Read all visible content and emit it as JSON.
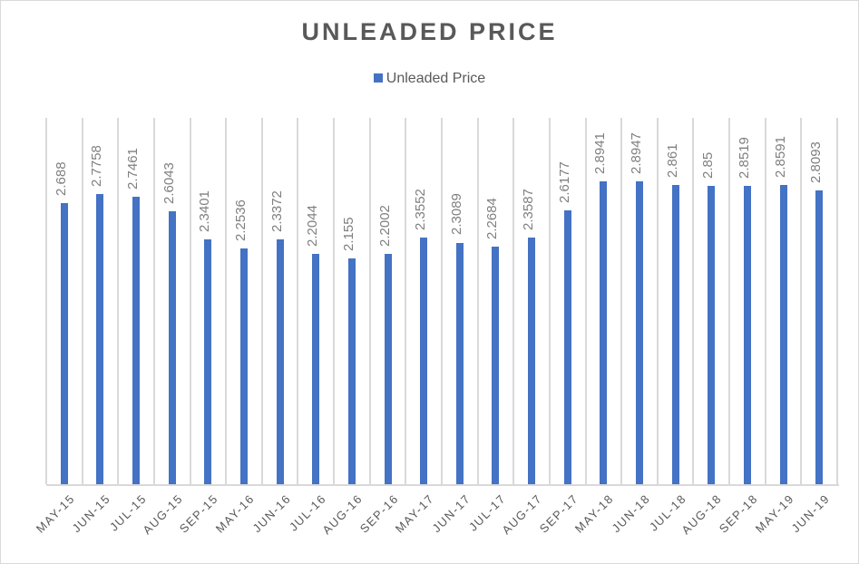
{
  "chart_data": {
    "type": "bar",
    "title": "UNLEADED PRICE",
    "xlabel": "",
    "ylabel": "",
    "ylim": [
      0,
      3.5
    ],
    "grid": "vertical category gridlines",
    "legend_position": "top",
    "categories": [
      "MAY-15",
      "JUN-15",
      "JUL-15",
      "AUG-15",
      "SEP-15",
      "MAY-16",
      "JUN-16",
      "JUL-16",
      "AUG-16",
      "SEP-16",
      "MAY-17",
      "JUN-17",
      "JUL-17",
      "AUG-17",
      "SEP-17",
      "MAY-18",
      "JUN-18",
      "JUL-18",
      "AUG-18",
      "SEP-18",
      "MAY-19",
      "JUN-19"
    ],
    "series": [
      {
        "name": "Unleaded Price",
        "color": "#4472c4",
        "values": [
          2.688,
          2.7758,
          2.7461,
          2.6043,
          2.3401,
          2.2536,
          2.3372,
          2.2044,
          2.155,
          2.2002,
          2.3552,
          2.3089,
          2.2684,
          2.3587,
          2.6177,
          2.8941,
          2.8947,
          2.861,
          2.85,
          2.8519,
          2.8591,
          2.8093
        ],
        "labels": [
          "2.688",
          "2.7758",
          "2.7461",
          "2.6043",
          "2.3401",
          "2.2536",
          "2.3372",
          "2.2044",
          "2.155",
          "2.2002",
          "2.3552",
          "2.3089",
          "2.2684",
          "2.3587",
          "2.6177",
          "2.8941",
          "2.8947",
          "2.861",
          "2.85",
          "2.8519",
          "2.8591",
          "2.8093"
        ]
      }
    ]
  },
  "legend": {
    "label": "Unleaded Price",
    "color": "#4472c4"
  }
}
